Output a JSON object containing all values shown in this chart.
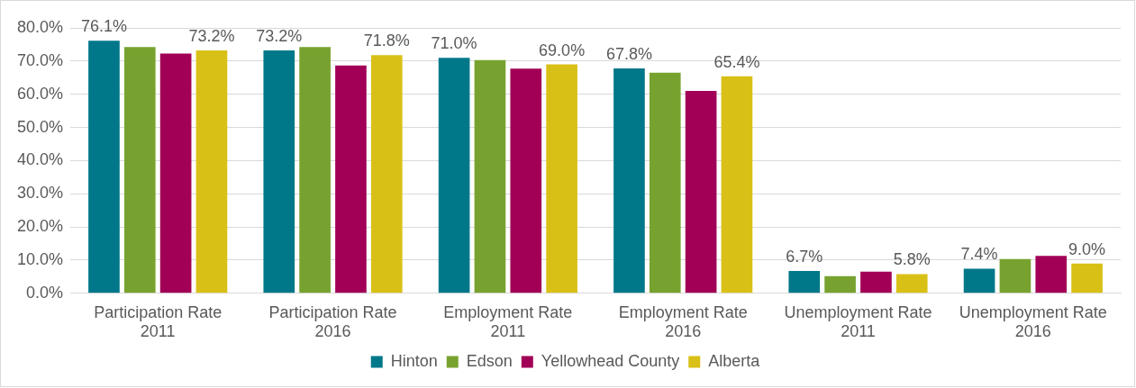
{
  "chart_data": {
    "type": "bar",
    "categories": [
      "Participation Rate 2011",
      "Participation Rate 2016",
      "Employment Rate 2011",
      "Employment Rate 2016",
      "Unemployment Rate 2011",
      "Unemployment Rate 2016"
    ],
    "series": [
      {
        "name": "Hinton",
        "color": "#00788a",
        "values": [
          76.1,
          73.2,
          71.0,
          67.8,
          6.7,
          7.4
        ],
        "value_labels": [
          "76.1%",
          "73.2%",
          "71.0%",
          "67.8%",
          "6.7%",
          "7.4%"
        ]
      },
      {
        "name": "Edson",
        "color": "#78a22f",
        "values": [
          74.2,
          74.2,
          70.3,
          66.5,
          5.2,
          10.3
        ]
      },
      {
        "name": "Yellowhead County",
        "color": "#a10056",
        "values": [
          72.3,
          68.7,
          67.7,
          61.0,
          6.5,
          11.3
        ]
      },
      {
        "name": "Alberta",
        "color": "#d9c016",
        "values": [
          73.2,
          71.8,
          69.0,
          65.4,
          5.8,
          9.0
        ],
        "value_labels": [
          "73.2%",
          "71.8%",
          "69.0%",
          "65.4%",
          "5.8%",
          "9.0%"
        ]
      }
    ],
    "ylim": [
      0,
      80
    ],
    "yticks": [
      {
        "value": 0,
        "label": "0.0%"
      },
      {
        "value": 10,
        "label": "10.0%"
      },
      {
        "value": 20,
        "label": "20.0%"
      },
      {
        "value": 30,
        "label": "30.0%"
      },
      {
        "value": 40,
        "label": "40.0%"
      },
      {
        "value": 50,
        "label": "50.0%"
      },
      {
        "value": 60,
        "label": "60.0%"
      },
      {
        "value": 70,
        "label": "70.0%"
      },
      {
        "value": 80,
        "label": "80.0%"
      }
    ],
    "grid": "y",
    "legend": "bottom"
  }
}
